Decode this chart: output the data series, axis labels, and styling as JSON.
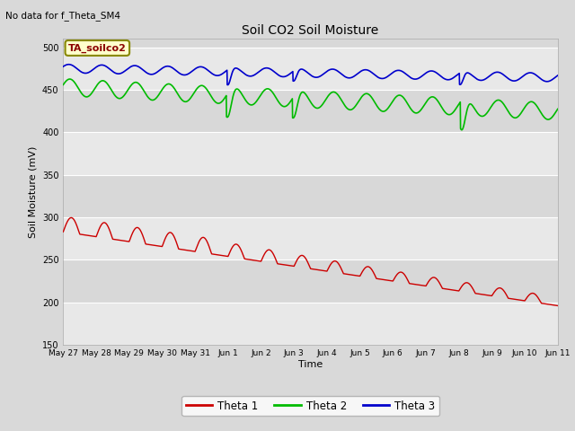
{
  "title": "Soil CO2 Soil Moisture",
  "ylabel": "Soil Moisture (mV)",
  "xlabel": "Time",
  "no_data_text": "No data for f_Theta_SM4",
  "box_label": "TA_soilco2",
  "ylim": [
    150,
    510
  ],
  "yticks": [
    150,
    200,
    250,
    300,
    350,
    400,
    450,
    500
  ],
  "colors": {
    "theta1": "#cc0000",
    "theta2": "#00bb00",
    "theta3": "#0000cc",
    "fig_bg": "#d9d9d9"
  },
  "legend_labels": [
    "Theta 1",
    "Theta 2",
    "Theta 3"
  ],
  "band_colors": [
    "#e8e8e8",
    "#d8d8d8"
  ],
  "grid_color": "#ffffff"
}
